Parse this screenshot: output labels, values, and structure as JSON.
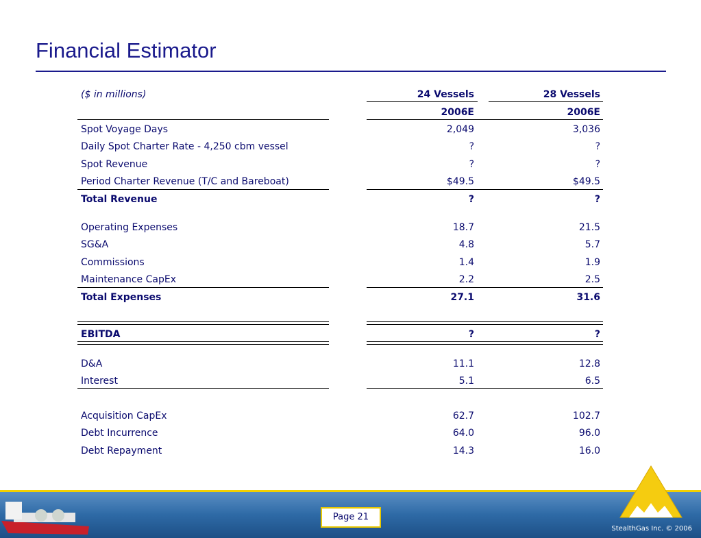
{
  "header": {
    "title": "Financial Estimator"
  },
  "table": {
    "units": "($ in millions)",
    "columns": [
      {
        "name": "24 Vessels",
        "period": "2006E"
      },
      {
        "name": "28 Vessels",
        "period": "2006E"
      }
    ],
    "rows": [
      {
        "label": "Spot Voyage Days",
        "values": [
          "2,049",
          "3,036"
        ]
      },
      {
        "label": "Daily Spot Charter Rate - 4,250 cbm vessel",
        "values": [
          "?",
          "?"
        ]
      },
      {
        "label": "Spot Revenue",
        "values": [
          "?",
          "?"
        ]
      },
      {
        "label": "Period Charter Revenue (T/C and Bareboat)",
        "values": [
          "$49.5",
          "$49.5"
        ]
      },
      {
        "label": "Total Revenue",
        "values": [
          "?",
          "?"
        ]
      },
      {
        "label": "Operating Expenses",
        "values": [
          "18.7",
          "21.5"
        ]
      },
      {
        "label": "SG&A",
        "values": [
          "4.8",
          "5.7"
        ]
      },
      {
        "label": "Commissions",
        "values": [
          "1.4",
          "1.9"
        ]
      },
      {
        "label": "Maintenance CapEx",
        "values": [
          "2.2",
          "2.5"
        ]
      },
      {
        "label": "Total Expenses",
        "values": [
          "27.1",
          "31.6"
        ]
      },
      {
        "label": "EBITDA",
        "values": [
          "?",
          "?"
        ]
      },
      {
        "label": "D&A",
        "values": [
          "11.1",
          "12.8"
        ]
      },
      {
        "label": "Interest",
        "values": [
          "5.1",
          "6.5"
        ]
      },
      {
        "label": "Acquisition CapEx",
        "values": [
          "62.7",
          "102.7"
        ]
      },
      {
        "label": "Debt Incurrence",
        "values": [
          "64.0",
          "96.0"
        ]
      },
      {
        "label": "Debt Repayment",
        "values": [
          "14.3",
          "16.0"
        ]
      }
    ]
  },
  "footer": {
    "page": "Page 21",
    "copyright": "StealthGas Inc. © 2006"
  }
}
